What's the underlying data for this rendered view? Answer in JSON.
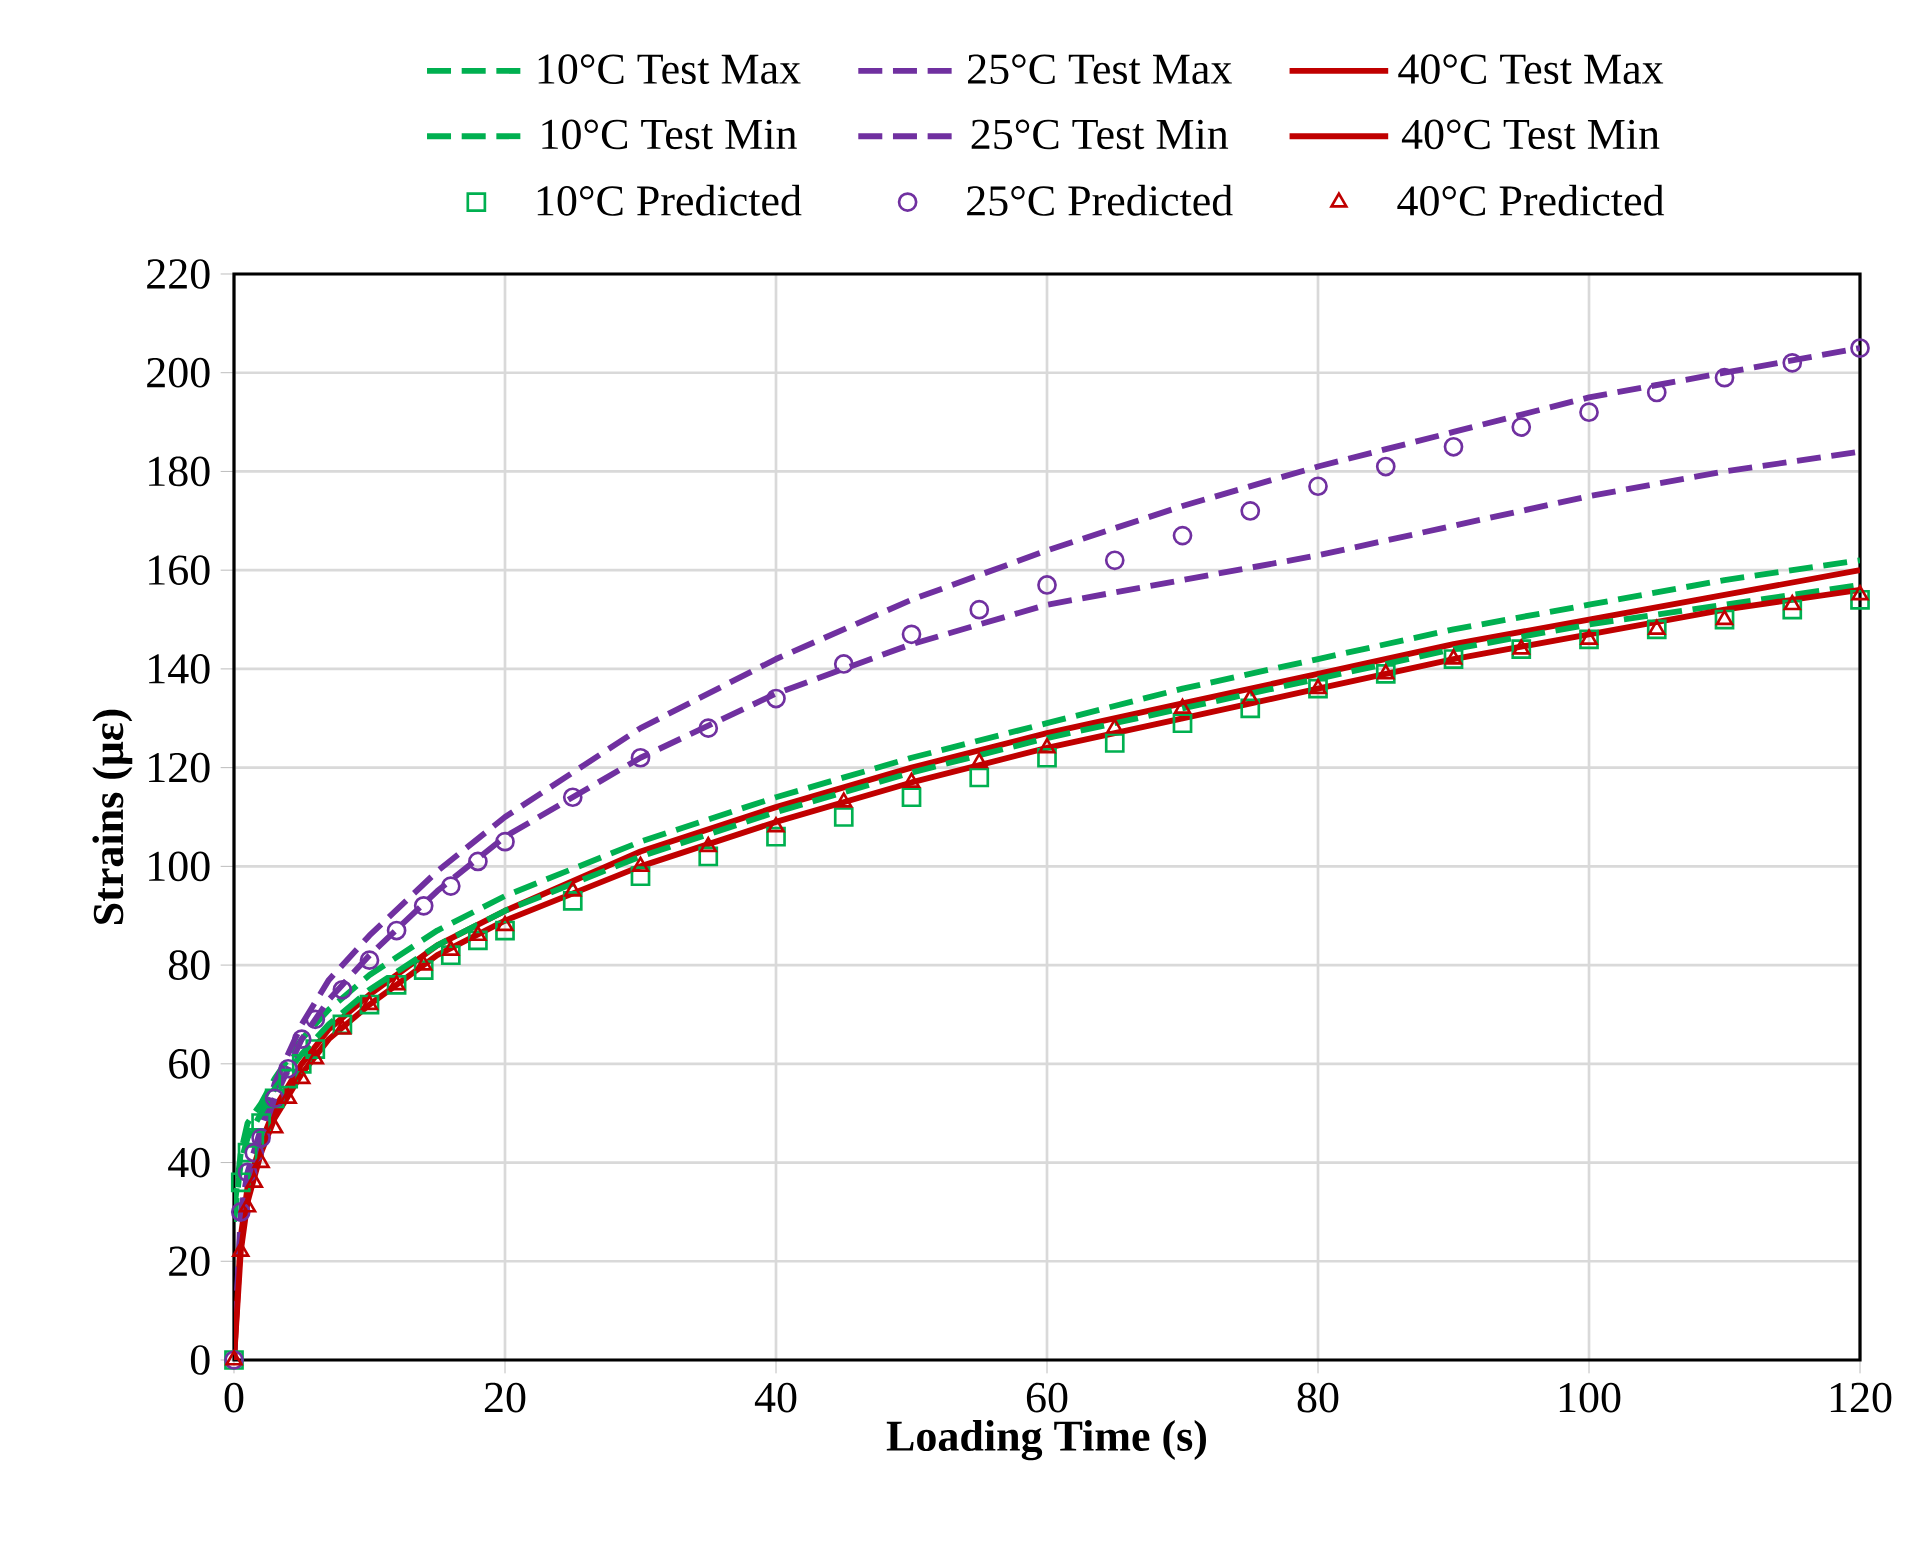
{
  "chart_data": {
    "type": "line",
    "xlabel": "Loading Time (s)",
    "ylabel": "Strains (με)",
    "xlim": [
      0,
      120
    ],
    "xticks": [
      0,
      20,
      40,
      60,
      80,
      100,
      120
    ],
    "ylim": [
      0,
      220
    ],
    "yticks": [
      0,
      20,
      40,
      60,
      80,
      100,
      120,
      140,
      160,
      180,
      200,
      220
    ],
    "grid": true,
    "legend": "top",
    "series": [
      {
        "name": "10°C Test Max",
        "color": "#00b050",
        "line_style": "dashed",
        "marker": "none",
        "x": [
          0,
          0.5,
          1,
          2,
          3,
          5,
          7,
          10,
          15,
          20,
          30,
          40,
          50,
          60,
          70,
          80,
          90,
          100,
          110,
          120
        ],
        "values": [
          30,
          42,
          48,
          52,
          57,
          65,
          71,
          78,
          87,
          94,
          105,
          114,
          122,
          129,
          136,
          142,
          148,
          153,
          158,
          162
        ]
      },
      {
        "name": "25°C Test Max",
        "color": "#7030a0",
        "line_style": "dashed",
        "marker": "none",
        "x": [
          0,
          0.5,
          1,
          2,
          3,
          5,
          7,
          10,
          15,
          20,
          30,
          40,
          50,
          60,
          70,
          80,
          90,
          100,
          110,
          120
        ],
        "values": [
          0,
          30,
          38,
          47,
          56,
          68,
          77,
          86,
          99,
          110,
          128,
          142,
          154,
          164,
          173,
          181,
          188,
          195,
          200,
          205
        ]
      },
      {
        "name": "40°C Test Max",
        "color": "#c00000",
        "line_style": "solid",
        "marker": "none",
        "x": [
          0,
          0.5,
          1,
          2,
          3,
          5,
          7,
          10,
          15,
          20,
          30,
          40,
          50,
          60,
          70,
          80,
          90,
          100,
          110,
          120
        ],
        "values": [
          0,
          25,
          35,
          44,
          51,
          60,
          67,
          74,
          84,
          91,
          103,
          112,
          120,
          127,
          133,
          139,
          145,
          150,
          155,
          160
        ]
      },
      {
        "name": "10°C Test Min",
        "color": "#00b050",
        "line_style": "dashed",
        "marker": "none",
        "x": [
          0,
          0.5,
          1,
          2,
          3,
          5,
          7,
          10,
          15,
          20,
          30,
          40,
          50,
          60,
          70,
          80,
          90,
          100,
          110,
          120
        ],
        "values": [
          28,
          40,
          45,
          50,
          55,
          62,
          68,
          75,
          84,
          91,
          102,
          111,
          119,
          126,
          132,
          138,
          144,
          149,
          153,
          157
        ]
      },
      {
        "name": "25°C Test Min",
        "color": "#7030a0",
        "line_style": "dashed",
        "marker": "none",
        "x": [
          0,
          0.5,
          1,
          2,
          3,
          5,
          7,
          10,
          15,
          20,
          30,
          40,
          50,
          60,
          70,
          80,
          90,
          100,
          110,
          120
        ],
        "values": [
          0,
          28,
          36,
          45,
          53,
          65,
          73,
          82,
          95,
          106,
          122,
          135,
          145,
          153,
          158,
          163,
          169,
          175,
          180,
          184
        ]
      },
      {
        "name": "40°C Test Min",
        "color": "#c00000",
        "line_style": "solid",
        "marker": "none",
        "x": [
          0,
          0.5,
          1,
          2,
          3,
          5,
          7,
          10,
          15,
          20,
          30,
          40,
          50,
          60,
          70,
          80,
          90,
          100,
          110,
          120
        ],
        "values": [
          0,
          22,
          32,
          42,
          49,
          58,
          65,
          72,
          82,
          89,
          100,
          109,
          117,
          124,
          130,
          136,
          142,
          147,
          152,
          156
        ]
      },
      {
        "name": "10°C Predicted",
        "color": "#00b050",
        "type": "scatter",
        "marker": "square",
        "x": [
          0,
          0.5,
          1,
          1.5,
          2,
          3,
          4,
          5,
          6,
          8,
          10,
          12,
          14,
          16,
          18,
          20,
          25,
          30,
          35,
          40,
          45,
          50,
          55,
          60,
          65,
          70,
          75,
          80,
          85,
          90,
          95,
          100,
          105,
          110,
          115,
          120
        ],
        "values": [
          0,
          36,
          42,
          45,
          48,
          53,
          57,
          60,
          63,
          68,
          72,
          76,
          79,
          82,
          85,
          87,
          93,
          98,
          102,
          106,
          110,
          114,
          118,
          122,
          125,
          129,
          132,
          136,
          139,
          142,
          144,
          146,
          148,
          150,
          152,
          154
        ]
      },
      {
        "name": "25°C Predicted",
        "color": "#7030a0",
        "type": "scatter",
        "marker": "circle",
        "x": [
          0,
          0.5,
          1,
          1.5,
          2,
          3,
          4,
          5,
          6,
          8,
          10,
          12,
          14,
          16,
          18,
          20,
          25,
          30,
          35,
          40,
          45,
          50,
          55,
          60,
          65,
          70,
          75,
          80,
          85,
          90,
          95,
          100,
          105,
          110,
          115,
          120
        ],
        "values": [
          0,
          30,
          38,
          42,
          45,
          53,
          59,
          65,
          69,
          75,
          81,
          87,
          92,
          96,
          101,
          105,
          114,
          122,
          128,
          134,
          141,
          147,
          152,
          157,
          162,
          167,
          172,
          177,
          181,
          185,
          189,
          192,
          196,
          199,
          202,
          205
        ]
      },
      {
        "name": "40°C Predicted",
        "color": "#c00000",
        "type": "scatter",
        "marker": "triangle",
        "x": [
          0,
          0.5,
          1,
          1.5,
          2,
          3,
          4,
          5,
          6,
          8,
          10,
          12,
          14,
          16,
          18,
          20,
          25,
          30,
          35,
          40,
          45,
          50,
          55,
          60,
          65,
          70,
          75,
          80,
          85,
          90,
          95,
          100,
          105,
          110,
          115,
          120
        ],
        "values": [
          0,
          22,
          31,
          36,
          40,
          47,
          53,
          57,
          61,
          67,
          72,
          76,
          80,
          83,
          86,
          88,
          95,
          100,
          104,
          108,
          113,
          117,
          121,
          124,
          128,
          132,
          134,
          136,
          139,
          142,
          144,
          146,
          148,
          150,
          153,
          155
        ]
      }
    ]
  }
}
